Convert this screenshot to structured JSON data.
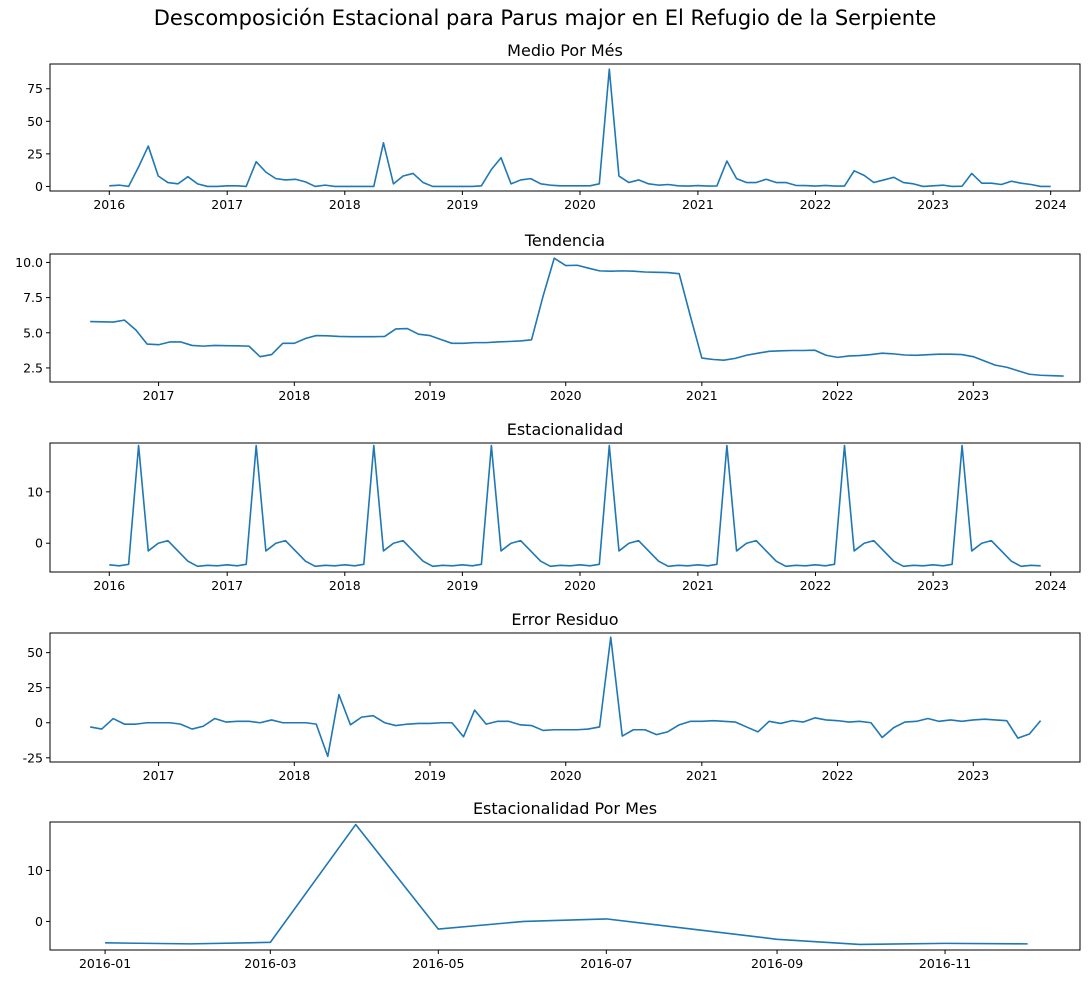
{
  "figure": {
    "title": "Descomposición Estacional para Parus major en El Refugio de la Serpiente"
  },
  "chart_data": [
    {
      "type": "line",
      "title": "Medio Por Més",
      "x_start": "2016-01",
      "y": [
        0.5,
        1,
        0,
        15,
        31,
        8,
        3,
        2,
        7.5,
        2,
        0,
        0,
        0.5,
        0.5,
        0,
        19,
        11,
        6,
        5,
        5.5,
        3.5,
        0,
        1,
        0,
        0,
        0,
        0,
        0,
        33.5,
        2,
        8,
        10,
        3,
        0,
        0,
        0,
        0,
        0,
        0.5,
        13,
        22,
        2,
        5,
        6,
        2,
        1,
        0.5,
        0.5,
        0.5,
        0.5,
        2,
        90,
        8,
        3,
        5,
        2,
        1,
        1.5,
        0.5,
        0.3,
        0.7,
        0.3,
        0.4,
        19.5,
        6,
        3,
        3,
        5.5,
        3,
        3,
        0.8,
        0.7,
        0.3,
        0.8,
        0.3,
        0.3,
        12,
        8.5,
        3,
        5,
        7,
        3,
        2,
        0,
        0.5,
        1,
        0,
        0.2,
        10,
        2.5,
        2.5,
        1.5,
        4,
        2.5,
        1.5,
        0,
        0
      ],
      "xlim": [
        "2015-07-01",
        "2024-04-01"
      ],
      "ylim": [
        -3.5,
        94
      ],
      "x_ticks": [
        "2016",
        "2017",
        "2018",
        "2019",
        "2020",
        "2021",
        "2022",
        "2023",
        "2024"
      ],
      "y_ticks": [
        0,
        25,
        50,
        75
      ],
      "color": "#1f77b4"
    },
    {
      "type": "line",
      "title": "Tendencia",
      "x_start": "2016-07",
      "y": [
        5.8,
        5.78,
        5.76,
        5.9,
        5.2,
        4.2,
        4.15,
        4.35,
        4.35,
        4.1,
        4.05,
        4.1,
        4.08,
        4.07,
        4.05,
        3.3,
        3.45,
        4.25,
        4.25,
        4.6,
        4.8,
        4.78,
        4.74,
        4.72,
        4.72,
        4.72,
        4.74,
        5.27,
        5.3,
        4.9,
        4.8,
        4.5,
        4.25,
        4.25,
        4.3,
        4.3,
        4.35,
        4.38,
        4.42,
        4.5,
        7.6,
        10.3,
        9.78,
        9.8,
        9.6,
        9.4,
        9.38,
        9.4,
        9.38,
        9.32,
        9.3,
        9.28,
        9.2,
        6.2,
        3.2,
        3.1,
        3.05,
        3.18,
        3.4,
        3.55,
        3.68,
        3.72,
        3.74,
        3.74,
        3.76,
        3.4,
        3.25,
        3.35,
        3.38,
        3.45,
        3.55,
        3.5,
        3.42,
        3.4,
        3.44,
        3.48,
        3.48,
        3.45,
        3.3,
        2.98,
        2.7,
        2.55,
        2.3,
        2.05,
        1.98,
        1.95,
        1.92
      ],
      "xlim": [
        "2016-03-15",
        "2023-10-15"
      ],
      "ylim": [
        1.5,
        10.6
      ],
      "x_ticks": [
        "2017",
        "2018",
        "2019",
        "2020",
        "2021",
        "2022",
        "2023"
      ],
      "y_ticks": [
        2.5,
        5.0,
        7.5,
        10.0
      ],
      "color": "#1f77b4"
    },
    {
      "type": "line",
      "title": "Estacionalidad",
      "x_start": "2016-01",
      "y_pattern": [
        -4.2,
        -4.4,
        -4.1,
        19,
        -1.5,
        0,
        0.5,
        -1.5,
        -3.5,
        -4.5,
        -4.3,
        -4.4
      ],
      "n_points": 96,
      "xlim": [
        "2015-07-01",
        "2024-04-01"
      ],
      "ylim": [
        -5.6,
        19.5
      ],
      "x_ticks": [
        "2016",
        "2017",
        "2018",
        "2019",
        "2020",
        "2021",
        "2022",
        "2023",
        "2024"
      ],
      "y_ticks": [
        0,
        10
      ],
      "color": "#1f77b4"
    },
    {
      "type": "line",
      "title": "Error Residuo",
      "x_start": "2016-07",
      "y": [
        -3,
        -4.5,
        3,
        -1,
        -1,
        0,
        0,
        0,
        -1,
        -4.5,
        -2.5,
        3,
        0.5,
        1,
        1,
        0,
        2,
        0,
        0,
        0,
        -1,
        -24,
        20,
        -1.5,
        4,
        5,
        0,
        -2,
        -1,
        -0.5,
        -0.5,
        0,
        0,
        -10,
        9,
        -1,
        1,
        1,
        -1.5,
        -2,
        -5.5,
        -5,
        -5,
        -5,
        -4.5,
        -3,
        61,
        -9.5,
        -5,
        -5,
        -8.5,
        -6.5,
        -1.5,
        1,
        1,
        1.5,
        1,
        0.5,
        -3,
        -6.5,
        1,
        -0.5,
        1.5,
        0.5,
        3.5,
        2,
        1.5,
        0.5,
        1,
        0,
        -10.5,
        -3.5,
        0.5,
        1,
        3,
        1,
        2,
        1,
        2,
        2.5,
        2,
        1.5,
        -11,
        -8,
        1.5
      ],
      "xlim": [
        "2016-03-15",
        "2023-10-15"
      ],
      "ylim": [
        -28,
        64
      ],
      "x_ticks": [
        "2017",
        "2018",
        "2019",
        "2020",
        "2021",
        "2022",
        "2023"
      ],
      "y_ticks": [
        -25,
        0,
        25,
        50
      ],
      "color": "#1f77b4"
    },
    {
      "type": "line",
      "title": "Estacionalidad Por Mes",
      "x": [
        "2016-01",
        "2016-02",
        "2016-03",
        "2016-04",
        "2016-05",
        "2016-06",
        "2016-07",
        "2016-08",
        "2016-09",
        "2016-10",
        "2016-11",
        "2016-12"
      ],
      "y": [
        -4.2,
        -4.4,
        -4.1,
        19,
        -1.5,
        0,
        0.5,
        -1.5,
        -3.5,
        -4.5,
        -4.3,
        -4.4
      ],
      "xlim": [
        "2015-12-12",
        "2016-12-20"
      ],
      "ylim": [
        -5.6,
        19.5
      ],
      "x_ticks": [
        "2016-01",
        "2016-03",
        "2016-05",
        "2016-07",
        "2016-09",
        "2016-11"
      ],
      "y_ticks": [
        0,
        10
      ],
      "color": "#1f77b4"
    }
  ]
}
